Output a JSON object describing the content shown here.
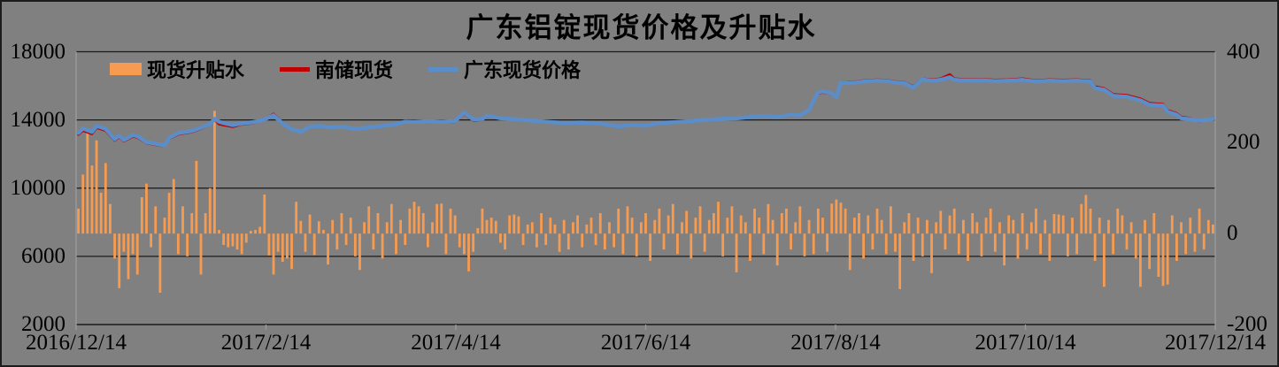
{
  "title": "广东铝锭现货价格及升贴水",
  "legend": {
    "items": [
      {
        "label": "现货升贴水",
        "type": "bar",
        "color": "#F79B50"
      },
      {
        "label": "南储现货",
        "type": "line",
        "color": "#C00000"
      },
      {
        "label": "广东现货价格",
        "type": "line",
        "color": "#5B8DC8"
      }
    ]
  },
  "colors": {
    "background": "#808080",
    "gridline": "#1a1a1a",
    "axis_line": "#9b9b9b",
    "bottom_axis": "#1a1a1a",
    "text": "#000000",
    "bar": "#F79B50",
    "nanchu_line": "#C00000",
    "guangdong_line": "#5B8DC8"
  },
  "chart_data": {
    "type": "bar+line combo, dual axis",
    "title": "广东铝锭现货价格及升贴水",
    "x_labels": [
      "2016/12/14",
      "2017/2/14",
      "2017/4/14",
      "2017/6/14",
      "2017/8/14",
      "2017/10/14",
      "2017/12/14"
    ],
    "left_axis": {
      "min": 2000,
      "max": 18000,
      "ticks": [
        18000,
        14000,
        10000,
        6000,
        2000
      ],
      "gridline_at": [
        18000,
        14000,
        10000,
        6000
      ]
    },
    "right_axis": {
      "min": -200,
      "max": 400,
      "ticks": [
        400,
        200,
        0,
        -200
      ]
    },
    "n_points": 251,
    "series": [
      {
        "name": "现货升贴水",
        "type": "bar",
        "axis": "right",
        "color": "#F79B50",
        "values": [
          55,
          130,
          225,
          150,
          205,
          90,
          155,
          65,
          -55,
          -120,
          -40,
          -100,
          -45,
          -90,
          80,
          110,
          -30,
          60,
          -130,
          35,
          90,
          120,
          -45,
          60,
          -50,
          45,
          160,
          -90,
          45,
          100,
          270,
          8,
          -25,
          -30,
          -28,
          -35,
          -45,
          -20,
          6,
          8,
          15,
          86,
          -48,
          -90,
          -40,
          -62,
          -55,
          -78,
          70,
          28,
          -40,
          42,
          -47,
          27,
          8,
          -68,
          30,
          -35,
          45,
          -25,
          35,
          -50,
          -80,
          25,
          60,
          -35,
          45,
          -55,
          25,
          65,
          -45,
          30,
          -25,
          55,
          70,
          60,
          45,
          -30,
          25,
          65,
          66,
          -45,
          55,
          40,
          -30,
          -45,
          -83,
          -40,
          12,
          55,
          30,
          35,
          28,
          -20,
          -35,
          40,
          42,
          38,
          -25,
          20,
          25,
          -30,
          45,
          -25,
          35,
          20,
          -40,
          30,
          -35,
          25,
          40,
          -30,
          20,
          35,
          -25,
          45,
          -35,
          25,
          -30,
          55,
          -45,
          60,
          35,
          -50,
          25,
          45,
          -60,
          30,
          55,
          -35,
          40,
          65,
          -45,
          25,
          50,
          -55,
          35,
          60,
          -40,
          30,
          45,
          70,
          -50,
          35,
          60,
          -85,
          40,
          25,
          -60,
          55,
          35,
          -45,
          65,
          30,
          -70,
          45,
          55,
          -35,
          25,
          60,
          -50,
          30,
          -45,
          55,
          35,
          -40,
          66,
          75,
          68,
          55,
          -80,
          35,
          45,
          -55,
          40,
          -35,
          55,
          30,
          -45,
          60,
          -40,
          -122,
          25,
          45,
          -60,
          35,
          -50,
          30,
          -87,
          25,
          50,
          -35,
          40,
          55,
          -45,
          30,
          -60,
          45,
          25,
          -50,
          35,
          55,
          -40,
          25,
          -70,
          40,
          30,
          -55,
          45,
          -35,
          25,
          55,
          -45,
          30,
          -60,
          43,
          42,
          40,
          -50,
          35,
          -45,
          65,
          85,
          55,
          -60,
          35,
          -117,
          30,
          -45,
          55,
          40,
          -35,
          25,
          -55,
          -117,
          30,
          -78,
          45,
          -95,
          -115,
          -112,
          40,
          -60,
          25,
          -45,
          35,
          -40,
          55,
          -35,
          30,
          20
        ]
      },
      {
        "name": "南储现货",
        "type": "line",
        "axis": "left",
        "color": "#C00000",
        "width": 3,
        "anchors": [
          [
            0,
            13150
          ],
          [
            1,
            13380
          ],
          [
            3,
            13180
          ],
          [
            4,
            13550
          ],
          [
            6,
            13380
          ],
          [
            8,
            12800
          ],
          [
            9,
            13000
          ],
          [
            10,
            12750
          ],
          [
            12,
            13030
          ],
          [
            13,
            12980
          ],
          [
            15,
            12650
          ],
          [
            17,
            12550
          ],
          [
            19,
            12470
          ],
          [
            20,
            12900
          ],
          [
            22,
            13160
          ],
          [
            25,
            13290
          ],
          [
            27,
            13500
          ],
          [
            29,
            13720
          ],
          [
            30,
            14020
          ],
          [
            31,
            13760
          ],
          [
            32,
            13700
          ],
          [
            34,
            13600
          ],
          [
            36,
            13740
          ],
          [
            38,
            13800
          ],
          [
            40,
            13920
          ],
          [
            41,
            14020
          ],
          [
            43,
            14350
          ],
          [
            45,
            13840
          ],
          [
            47,
            13470
          ],
          [
            49,
            13320
          ],
          [
            51,
            13580
          ],
          [
            53,
            13630
          ],
          [
            56,
            13540
          ],
          [
            58,
            13590
          ],
          [
            61,
            13460
          ],
          [
            64,
            13550
          ],
          [
            67,
            13630
          ],
          [
            70,
            13730
          ],
          [
            72,
            13890
          ],
          [
            74,
            13860
          ],
          [
            77,
            13910
          ],
          [
            80,
            13880
          ],
          [
            83,
            13900
          ],
          [
            85,
            14360
          ],
          [
            87,
            13970
          ],
          [
            89,
            14020
          ],
          [
            90,
            14210
          ],
          [
            93,
            14070
          ],
          [
            96,
            14020
          ],
          [
            100,
            13940
          ],
          [
            103,
            13880
          ],
          [
            107,
            13800
          ],
          [
            111,
            13830
          ],
          [
            115,
            13770
          ],
          [
            119,
            13610
          ],
          [
            122,
            13690
          ],
          [
            125,
            13650
          ],
          [
            128,
            13810
          ],
          [
            131,
            13850
          ],
          [
            134,
            13910
          ],
          [
            137,
            13970
          ],
          [
            140,
            14020
          ],
          [
            143,
            14070
          ],
          [
            145,
            14080
          ],
          [
            148,
            14160
          ],
          [
            151,
            14220
          ],
          [
            154,
            14160
          ],
          [
            157,
            14290
          ],
          [
            159,
            14250
          ],
          [
            161,
            14580
          ],
          [
            163,
            15560
          ],
          [
            164,
            15620
          ],
          [
            166,
            15520
          ],
          [
            167,
            15330
          ],
          [
            168,
            16230
          ],
          [
            170,
            16200
          ],
          [
            173,
            16300
          ],
          [
            176,
            16350
          ],
          [
            178,
            16330
          ],
          [
            180,
            16250
          ],
          [
            182,
            16200
          ],
          [
            184,
            15960
          ],
          [
            186,
            16420
          ],
          [
            188,
            16360
          ],
          [
            190,
            16420
          ],
          [
            192,
            16660
          ],
          [
            193,
            16420
          ],
          [
            196,
            16360
          ],
          [
            199,
            16380
          ],
          [
            202,
            16340
          ],
          [
            205,
            16360
          ],
          [
            208,
            16420
          ],
          [
            211,
            16310
          ],
          [
            214,
            16360
          ],
          [
            217,
            16340
          ],
          [
            220,
            16360
          ],
          [
            223,
            16310
          ],
          [
            224,
            15950
          ],
          [
            226,
            15850
          ],
          [
            228,
            15500
          ],
          [
            231,
            15450
          ],
          [
            234,
            15240
          ],
          [
            236,
            14980
          ],
          [
            239,
            14920
          ],
          [
            240,
            14560
          ],
          [
            242,
            14380
          ],
          [
            243,
            14180
          ],
          [
            245,
            14100
          ],
          [
            247,
            13900
          ],
          [
            249,
            14050
          ],
          [
            250,
            14120
          ]
        ]
      },
      {
        "name": "广东现货价格",
        "type": "line",
        "axis": "left",
        "color": "#5B8DC8",
        "width": 4.5,
        "anchors": [
          [
            0,
            13240
          ],
          [
            1,
            13500
          ],
          [
            3,
            13300
          ],
          [
            4,
            13650
          ],
          [
            6,
            13470
          ],
          [
            8,
            12870
          ],
          [
            9,
            13080
          ],
          [
            10,
            12820
          ],
          [
            12,
            13110
          ],
          [
            13,
            13050
          ],
          [
            15,
            12700
          ],
          [
            17,
            12600
          ],
          [
            19,
            12510
          ],
          [
            20,
            12960
          ],
          [
            22,
            13230
          ],
          [
            25,
            13350
          ],
          [
            27,
            13550
          ],
          [
            29,
            13750
          ],
          [
            30,
            14060
          ],
          [
            31,
            13900
          ],
          [
            32,
            13820
          ],
          [
            34,
            13700
          ],
          [
            36,
            13800
          ],
          [
            38,
            13850
          ],
          [
            40,
            13950
          ],
          [
            41,
            14030
          ],
          [
            43,
            14270
          ],
          [
            45,
            13800
          ],
          [
            47,
            13450
          ],
          [
            49,
            13300
          ],
          [
            51,
            13600
          ],
          [
            53,
            13650
          ],
          [
            56,
            13550
          ],
          [
            58,
            13600
          ],
          [
            61,
            13470
          ],
          [
            64,
            13560
          ],
          [
            67,
            13650
          ],
          [
            70,
            13750
          ],
          [
            72,
            13900
          ],
          [
            74,
            13880
          ],
          [
            77,
            13930
          ],
          [
            80,
            13900
          ],
          [
            83,
            13940
          ],
          [
            85,
            14420
          ],
          [
            87,
            14030
          ],
          [
            89,
            14060
          ],
          [
            90,
            14250
          ],
          [
            93,
            14100
          ],
          [
            96,
            14050
          ],
          [
            100,
            13960
          ],
          [
            103,
            13900
          ],
          [
            107,
            13820
          ],
          [
            111,
            13850
          ],
          [
            115,
            13790
          ],
          [
            119,
            13620
          ],
          [
            122,
            13700
          ],
          [
            125,
            13660
          ],
          [
            128,
            13820
          ],
          [
            131,
            13860
          ],
          [
            134,
            13920
          ],
          [
            137,
            13980
          ],
          [
            140,
            14030
          ],
          [
            143,
            14080
          ],
          [
            145,
            14090
          ],
          [
            148,
            14170
          ],
          [
            151,
            14230
          ],
          [
            154,
            14170
          ],
          [
            157,
            14300
          ],
          [
            159,
            14260
          ],
          [
            161,
            14600
          ],
          [
            163,
            15620
          ],
          [
            164,
            15680
          ],
          [
            166,
            15550
          ],
          [
            167,
            15350
          ],
          [
            168,
            16200
          ],
          [
            170,
            16150
          ],
          [
            173,
            16250
          ],
          [
            176,
            16300
          ],
          [
            178,
            16280
          ],
          [
            180,
            16200
          ],
          [
            182,
            16150
          ],
          [
            184,
            15900
          ],
          [
            186,
            16380
          ],
          [
            188,
            16300
          ],
          [
            190,
            16350
          ],
          [
            192,
            16500
          ],
          [
            193,
            16350
          ],
          [
            196,
            16300
          ],
          [
            199,
            16320
          ],
          [
            202,
            16280
          ],
          [
            205,
            16300
          ],
          [
            208,
            16350
          ],
          [
            211,
            16250
          ],
          [
            214,
            16300
          ],
          [
            217,
            16280
          ],
          [
            220,
            16300
          ],
          [
            223,
            16250
          ],
          [
            224,
            15870
          ],
          [
            226,
            15770
          ],
          [
            228,
            15410
          ],
          [
            231,
            15360
          ],
          [
            234,
            15150
          ],
          [
            236,
            14890
          ],
          [
            239,
            14840
          ],
          [
            240,
            14480
          ],
          [
            242,
            14300
          ],
          [
            243,
            14100
          ],
          [
            245,
            14050
          ],
          [
            247,
            13950
          ],
          [
            249,
            14020
          ],
          [
            250,
            14080
          ]
        ]
      }
    ]
  }
}
